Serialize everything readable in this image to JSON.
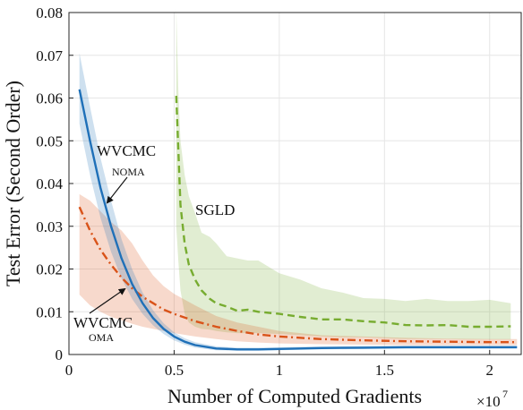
{
  "chart_data": {
    "type": "line",
    "title": "",
    "xlabel": "Number of Computed Gradients",
    "ylabel": "Test Error (Second Order)",
    "x_multiplier": "×10",
    "x_multiplier_exp": "7",
    "xlim": [
      0,
      2.15
    ],
    "ylim": [
      0,
      0.08
    ],
    "grid": true,
    "xticks": [
      {
        "value": 0,
        "label": "0"
      },
      {
        "value": 0.5,
        "label": "0.5"
      },
      {
        "value": 1,
        "label": "1"
      },
      {
        "value": 1.5,
        "label": "1.5"
      },
      {
        "value": 2,
        "label": "2"
      }
    ],
    "yticks": [
      {
        "value": 0,
        "label": "0"
      },
      {
        "value": 0.01,
        "label": "0.01"
      },
      {
        "value": 0.02,
        "label": "0.02"
      },
      {
        "value": 0.03,
        "label": "0.03"
      },
      {
        "value": 0.04,
        "label": "0.04"
      },
      {
        "value": 0.05,
        "label": "0.05"
      },
      {
        "value": 0.06,
        "label": "0.06"
      },
      {
        "value": 0.07,
        "label": "0.07"
      },
      {
        "value": 0.08,
        "label": "0.08"
      }
    ],
    "series": [
      {
        "key": "sgld",
        "color": "#77ac30",
        "style": "dashed",
        "x": [
          0.51,
          0.52,
          0.53,
          0.55,
          0.57,
          0.6,
          0.63,
          0.67,
          0.7,
          0.75,
          0.8,
          0.85,
          0.9,
          1.0,
          1.1,
          1.2,
          1.3,
          1.4,
          1.5,
          1.6,
          1.7,
          1.8,
          1.9,
          2.0,
          2.1
        ],
        "y": [
          0.0605,
          0.048,
          0.035,
          0.026,
          0.021,
          0.0175,
          0.015,
          0.013,
          0.012,
          0.0112,
          0.0102,
          0.0105,
          0.01,
          0.0095,
          0.0088,
          0.0082,
          0.0082,
          0.0078,
          0.0075,
          0.0069,
          0.0068,
          0.0069,
          0.0065,
          0.0065,
          0.0066
        ],
        "band_upper": [
          0.081,
          0.062,
          0.05,
          0.042,
          0.037,
          0.033,
          0.0285,
          0.0275,
          0.026,
          0.023,
          0.0225,
          0.022,
          0.022,
          0.019,
          0.0175,
          0.0155,
          0.0145,
          0.0132,
          0.013,
          0.0125,
          0.013,
          0.0125,
          0.0125,
          0.0128,
          0.012
        ],
        "band_lower": [
          0.03,
          0.022,
          0.015,
          0.0095,
          0.0075,
          0.0065,
          0.006,
          0.0058,
          0.0055,
          0.0052,
          0.005,
          0.005,
          0.005,
          0.0048,
          0.0045,
          0.0042,
          0.004,
          0.004,
          0.0038,
          0.0036,
          0.0036,
          0.0036,
          0.0035,
          0.0035,
          0.0035
        ]
      },
      {
        "key": "oma",
        "color": "#d95319",
        "style": "dashdot",
        "x": [
          0.05,
          0.1,
          0.15,
          0.2,
          0.25,
          0.3,
          0.35,
          0.4,
          0.45,
          0.5,
          0.6,
          0.7,
          0.8,
          0.9,
          1.0,
          1.2,
          1.4,
          1.6,
          1.8,
          2.0,
          2.13
        ],
        "y": [
          0.0345,
          0.029,
          0.0245,
          0.021,
          0.018,
          0.0155,
          0.0135,
          0.012,
          0.0105,
          0.0095,
          0.0078,
          0.0065,
          0.0055,
          0.0047,
          0.0042,
          0.0036,
          0.0033,
          0.0031,
          0.003,
          0.0029,
          0.0029
        ],
        "band_upper": [
          0.0375,
          0.036,
          0.0335,
          0.031,
          0.029,
          0.026,
          0.022,
          0.0185,
          0.016,
          0.0142,
          0.0115,
          0.009,
          0.0075,
          0.0065,
          0.0055,
          0.0045,
          0.0042,
          0.0039,
          0.0037,
          0.0036,
          0.0036
        ],
        "band_lower": [
          0.014,
          0.0115,
          0.01,
          0.0088,
          0.008,
          0.0072,
          0.0065,
          0.006,
          0.0055,
          0.005,
          0.0042,
          0.0036,
          0.0031,
          0.0028,
          0.0026,
          0.0024,
          0.0023,
          0.0022,
          0.0022,
          0.0022,
          0.0022
        ]
      },
      {
        "key": "noma",
        "color": "#1f70b8",
        "style": "solid",
        "x": [
          0.05,
          0.1,
          0.15,
          0.2,
          0.25,
          0.3,
          0.35,
          0.4,
          0.45,
          0.5,
          0.55,
          0.6,
          0.7,
          0.8,
          0.9,
          1.0,
          1.2,
          1.4,
          1.6,
          1.8,
          2.0,
          2.13
        ],
        "y": [
          0.062,
          0.05,
          0.039,
          0.03,
          0.0225,
          0.0165,
          0.012,
          0.0085,
          0.006,
          0.0042,
          0.003,
          0.0022,
          0.0014,
          0.0012,
          0.0012,
          0.0013,
          0.0015,
          0.0016,
          0.0017,
          0.0017,
          0.0017,
          0.0017
        ],
        "band_upper": [
          0.0705,
          0.058,
          0.046,
          0.036,
          0.027,
          0.02,
          0.0145,
          0.0103,
          0.0073,
          0.0052,
          0.0038,
          0.0029,
          0.0019,
          0.0016,
          0.0016,
          0.0017,
          0.0019,
          0.002,
          0.0021,
          0.0021,
          0.0021,
          0.0021
        ],
        "band_lower": [
          0.054,
          0.042,
          0.032,
          0.024,
          0.0178,
          0.013,
          0.0095,
          0.0068,
          0.0048,
          0.0033,
          0.0023,
          0.0016,
          0.001,
          0.0009,
          0.0009,
          0.001,
          0.0012,
          0.0013,
          0.0014,
          0.0014,
          0.0014,
          0.0014
        ]
      }
    ],
    "annotations": {
      "noma": {
        "text": "WVCMC",
        "sub": "NOMA"
      },
      "oma": {
        "text": "WVCMC",
        "sub": "OMA"
      },
      "sgld": {
        "text": "SGLD"
      }
    }
  }
}
